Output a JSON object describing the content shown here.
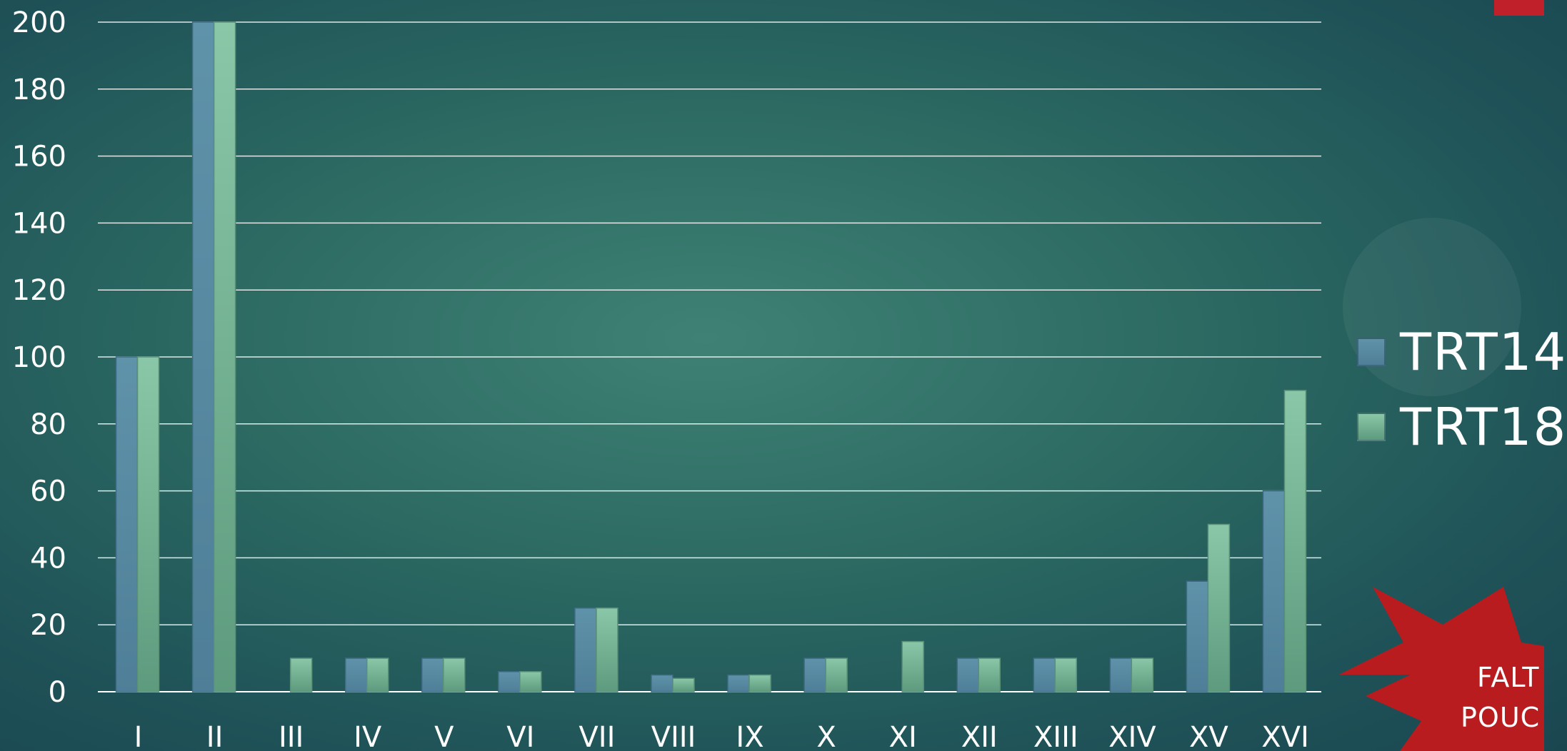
{
  "chart_data": {
    "type": "bar",
    "categories": [
      "I",
      "II",
      "III",
      "IV",
      "V",
      "VI",
      "VII",
      "VIII",
      "IX",
      "X",
      "XI",
      "XII",
      "XIII",
      "XIV",
      "XV",
      "XVI"
    ],
    "series": [
      {
        "name": "TRT14",
        "values": [
          100,
          200,
          0,
          10,
          10,
          6,
          25,
          5,
          5,
          10,
          0,
          10,
          10,
          10,
          33,
          60
        ],
        "color": "#5a8ea6"
      },
      {
        "name": "TRT18",
        "values": [
          100,
          200,
          10,
          10,
          10,
          6,
          25,
          4,
          5,
          10,
          15,
          10,
          10,
          10,
          50,
          90
        ],
        "color": "#7fbe9c"
      }
    ],
    "yticks": [
      "0",
      "20",
      "40",
      "60",
      "80",
      "100",
      "120",
      "140",
      "160",
      "180",
      "200"
    ],
    "ylim": [
      0,
      200
    ],
    "grid": true,
    "legend": "right"
  },
  "legend": {
    "items": [
      {
        "label": "TRT14"
      },
      {
        "label": "TRT18"
      }
    ]
  },
  "badge": {
    "line1": "FALT",
    "line2": "POUC",
    "color": "#b81c1f"
  },
  "colors": {
    "accent_red": "#c0202a"
  }
}
